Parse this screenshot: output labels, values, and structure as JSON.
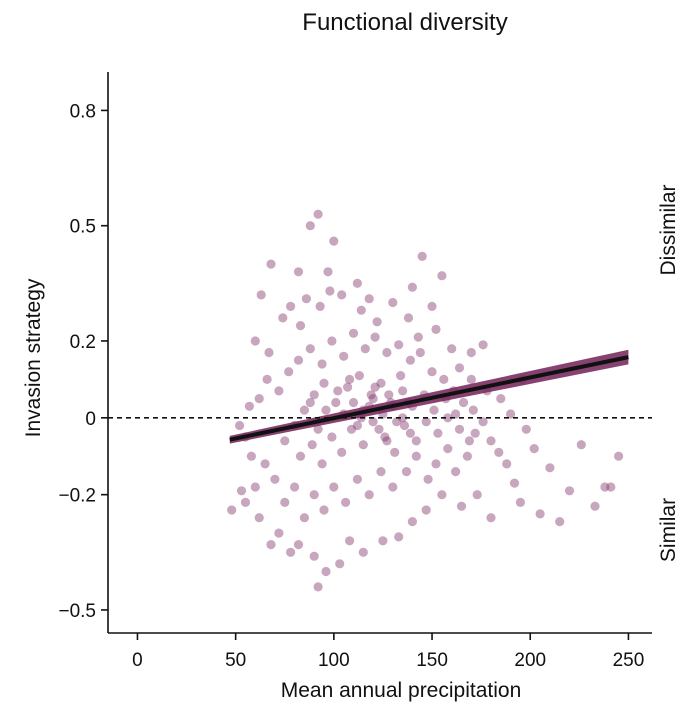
{
  "chart_data": {
    "type": "scatter",
    "title": "Functional diversity",
    "xlabel": "Mean annual precipitation",
    "ylabel": "Invasion strategy",
    "xlim": [
      -15,
      262
    ],
    "ylim": [
      -0.56,
      0.9
    ],
    "x_ticks": [
      0,
      50,
      100,
      150,
      200,
      250
    ],
    "x_tick_labels": [
      "0",
      "50",
      "100",
      "150",
      "200",
      "250"
    ],
    "y_ticks": [
      -0.5,
      -0.2,
      0,
      0.2,
      0.5,
      0.8
    ],
    "y_tick_labels": [
      "−0.5",
      "−0.2",
      "0",
      "0.2",
      "0.5",
      "0.8"
    ],
    "side_labels": {
      "top": "Dissimilar",
      "bottom": "Similar"
    },
    "reference_line": {
      "y": 0,
      "style": "dashed"
    },
    "regression": {
      "x": [
        47,
        250
      ],
      "y": [
        -0.057,
        0.158
      ],
      "ci_lower": [
        -0.067,
        0.139
      ],
      "ci_upper": [
        -0.047,
        0.177
      ]
    },
    "point_color": "#7b2d63",
    "line_color": "#111111",
    "ci_color": "#7b2d63",
    "grid": false,
    "points": [
      [
        92,
        0.53
      ],
      [
        100,
        0.46
      ],
      [
        88,
        0.5
      ],
      [
        68,
        0.4
      ],
      [
        82,
        0.38
      ],
      [
        97,
        0.38
      ],
      [
        112,
        0.35
      ],
      [
        145,
        0.42
      ],
      [
        140,
        0.34
      ],
      [
        155,
        0.37
      ],
      [
        60,
        0.2
      ],
      [
        67,
        0.17
      ],
      [
        74,
        0.26
      ],
      [
        83,
        0.24
      ],
      [
        86,
        0.31
      ],
      [
        93,
        0.29
      ],
      [
        104,
        0.32
      ],
      [
        114,
        0.28
      ],
      [
        122,
        0.25
      ],
      [
        130,
        0.3
      ],
      [
        138,
        0.26
      ],
      [
        143,
        0.21
      ],
      [
        152,
        0.23
      ],
      [
        160,
        0.18
      ],
      [
        164,
        0.13
      ],
      [
        60,
        -0.18
      ],
      [
        53,
        -0.19
      ],
      [
        55,
        -0.22
      ],
      [
        62,
        -0.26
      ],
      [
        68,
        -0.33
      ],
      [
        72,
        -0.3
      ],
      [
        78,
        -0.35
      ],
      [
        82,
        -0.33
      ],
      [
        90,
        -0.36
      ],
      [
        92,
        -0.44
      ],
      [
        96,
        -0.4
      ],
      [
        103,
        -0.38
      ],
      [
        108,
        -0.32
      ],
      [
        115,
        -0.35
      ],
      [
        125,
        -0.32
      ],
      [
        133,
        -0.31
      ],
      [
        140,
        -0.27
      ],
      [
        147,
        -0.24
      ],
      [
        155,
        -0.2
      ],
      [
        165,
        -0.23
      ],
      [
        173,
        -0.2
      ],
      [
        180,
        -0.26
      ],
      [
        195,
        -0.22
      ],
      [
        205,
        -0.25
      ],
      [
        215,
        -0.27
      ],
      [
        220,
        -0.19
      ],
      [
        226,
        -0.07
      ],
      [
        233,
        -0.23
      ],
      [
        238,
        -0.18
      ],
      [
        241,
        -0.18
      ],
      [
        245,
        -0.1
      ],
      [
        210,
        -0.13
      ],
      [
        202,
        -0.08
      ],
      [
        198,
        -0.03
      ],
      [
        190,
        0.01
      ],
      [
        185,
        0.05
      ],
      [
        178,
        0.07
      ],
      [
        170,
        0.1
      ],
      [
        172,
        -0.04
      ],
      [
        168,
        -0.1
      ],
      [
        162,
        -0.14
      ],
      [
        158,
        -0.08
      ],
      [
        152,
        -0.12
      ],
      [
        148,
        -0.16
      ],
      [
        142,
        -0.1
      ],
      [
        137,
        -0.14
      ],
      [
        130,
        -0.18
      ],
      [
        124,
        -0.14
      ],
      [
        118,
        -0.2
      ],
      [
        112,
        -0.16
      ],
      [
        106,
        -0.22
      ],
      [
        100,
        -0.18
      ],
      [
        95,
        -0.24
      ],
      [
        90,
        -0.2
      ],
      [
        85,
        -0.26
      ],
      [
        80,
        -0.18
      ],
      [
        75,
        -0.22
      ],
      [
        70,
        -0.16
      ],
      [
        65,
        -0.12
      ],
      [
        58,
        -0.1
      ],
      [
        55,
        -0.05
      ],
      [
        52,
        -0.02
      ],
      [
        57,
        0.03
      ],
      [
        62,
        0.05
      ],
      [
        66,
        0.1
      ],
      [
        72,
        0.07
      ],
      [
        77,
        0.12
      ],
      [
        82,
        0.15
      ],
      [
        88,
        0.18
      ],
      [
        94,
        0.14
      ],
      [
        99,
        0.2
      ],
      [
        105,
        0.16
      ],
      [
        110,
        0.22
      ],
      [
        116,
        0.18
      ],
      [
        121,
        0.21
      ],
      [
        127,
        0.17
      ],
      [
        133,
        0.19
      ],
      [
        139,
        0.15
      ],
      [
        144,
        0.17
      ],
      [
        150,
        0.12
      ],
      [
        156,
        0.1
      ],
      [
        161,
        0.07
      ],
      [
        166,
        0.04
      ],
      [
        171,
        0.02
      ],
      [
        176,
        -0.01
      ],
      [
        180,
        -0.06
      ],
      [
        184,
        -0.09
      ],
      [
        188,
        -0.12
      ],
      [
        75,
        -0.06
      ],
      [
        80,
        -0.02
      ],
      [
        85,
        0.02
      ],
      [
        90,
        0.06
      ],
      [
        95,
        0.09
      ],
      [
        101,
        0.04
      ],
      [
        107,
        0.08
      ],
      [
        113,
        0.11
      ],
      [
        119,
        0.06
      ],
      [
        124,
        0.09
      ],
      [
        129,
        0.04
      ],
      [
        135,
        0.07
      ],
      [
        140,
        0.03
      ],
      [
        146,
        0.06
      ],
      [
        151,
        0.02
      ],
      [
        157,
        0.05
      ],
      [
        162,
        0.01
      ],
      [
        83,
        -0.1
      ],
      [
        89,
        -0.07
      ],
      [
        94,
        -0.12
      ],
      [
        99,
        -0.05
      ],
      [
        104,
        -0.09
      ],
      [
        109,
        -0.03
      ],
      [
        115,
        -0.07
      ],
      [
        120,
        -0.01
      ],
      [
        126,
        -0.05
      ],
      [
        131,
        -0.09
      ],
      [
        136,
        -0.02
      ],
      [
        142,
        -0.06
      ],
      [
        147,
        -0.01
      ],
      [
        153,
        -0.04
      ],
      [
        158,
        0.0
      ],
      [
        164,
        -0.03
      ],
      [
        169,
        -0.06
      ],
      [
        110,
        0.04
      ],
      [
        115,
        0.02
      ],
      [
        120,
        0.05
      ],
      [
        125,
        0.01
      ],
      [
        130,
        0.03
      ],
      [
        135,
        0.0
      ],
      [
        105,
        0.01
      ],
      [
        112,
        -0.02
      ],
      [
        118,
        0.03
      ],
      [
        123,
        -0.03
      ],
      [
        128,
        0.06
      ],
      [
        132,
        -0.01
      ],
      [
        138,
        0.04
      ],
      [
        102,
        0.07
      ],
      [
        108,
        0.1
      ],
      [
        114,
        0.0
      ],
      [
        121,
        0.08
      ],
      [
        127,
        -0.06
      ],
      [
        134,
        0.11
      ],
      [
        139,
        -0.04
      ],
      [
        96,
        0.02
      ],
      [
        92,
        -0.03
      ],
      [
        88,
        0.04
      ],
      [
        48,
        -0.24
      ],
      [
        63,
        0.32
      ],
      [
        78,
        0.29
      ],
      [
        98,
        0.33
      ],
      [
        118,
        0.31
      ],
      [
        150,
        0.29
      ],
      [
        170,
        0.17
      ],
      [
        176,
        0.19
      ],
      [
        196,
        0.1
      ],
      [
        192,
        -0.17
      ]
    ]
  }
}
